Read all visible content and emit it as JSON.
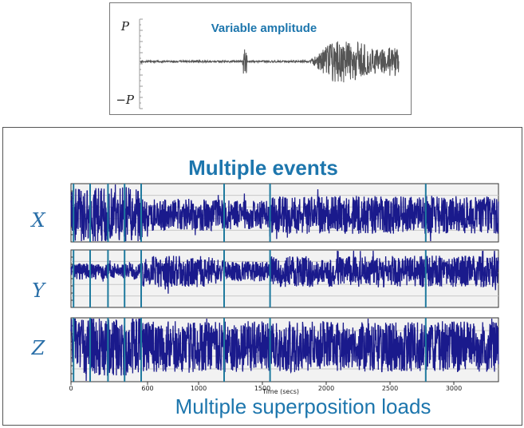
{
  "chart_data": [
    {
      "type": "line",
      "title": "Variable amplitude",
      "ylabel_top": "P",
      "ylabel_bottom": "−P",
      "ylim": [
        -1,
        1
      ],
      "series": [
        {
          "color": "#555555"
        }
      ],
      "grid": false
    },
    {
      "type": "line",
      "title": "Multiple events",
      "subtitle": "Multiple superposition loads",
      "xlabel": "Time (secs)",
      "x_ticks": [
        0,
        600,
        1000,
        1500,
        2000,
        2500,
        3000
      ],
      "xlim": [
        0,
        3350
      ],
      "event_lines_x": [
        20,
        150,
        290,
        420,
        550,
        1200,
        1560,
        2780
      ],
      "grid": true,
      "series": [
        {
          "name": "X",
          "color": "#1a1a8c"
        },
        {
          "name": "Y",
          "color": "#1a1a8c"
        },
        {
          "name": "Z",
          "color": "#1a1a8c"
        }
      ]
    }
  ]
}
